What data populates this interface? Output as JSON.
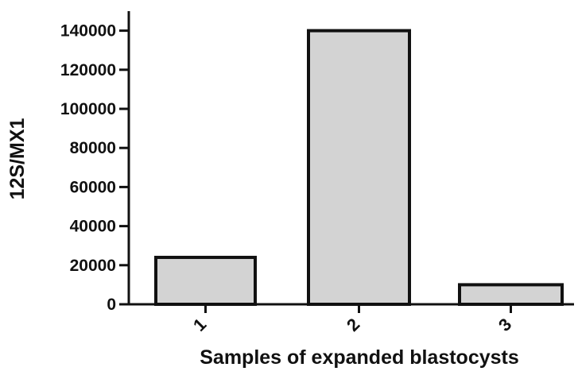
{
  "chart_data": {
    "type": "bar",
    "categories": [
      "1",
      "2",
      "3"
    ],
    "values": [
      24000,
      140000,
      10000
    ],
    "title": "",
    "xlabel": "Samples of expanded blastocysts",
    "ylabel": "12S/MX1",
    "ylim": [
      0,
      150000
    ],
    "yticks": [
      0,
      20000,
      40000,
      60000,
      80000,
      100000,
      120000,
      140000
    ],
    "ytick_labels": [
      "0",
      "20000",
      "40000",
      "60000",
      "80000",
      "100000",
      "120000",
      "140000"
    ],
    "grid": false,
    "legend": "none",
    "bar_color": "#d3d3d3",
    "edge_color": "#111111"
  }
}
